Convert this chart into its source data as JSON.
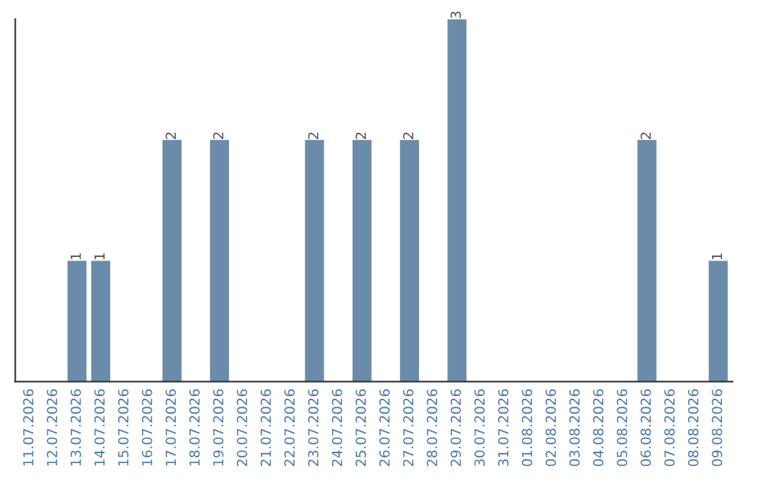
{
  "chart_data": {
    "type": "bar",
    "categories": [
      "11.07.2026",
      "12.07.2026",
      "13.07.2026",
      "14.07.2026",
      "15.07.2026",
      "16.07.2026",
      "17.07.2026",
      "18.07.2026",
      "19.07.2026",
      "20.07.2026",
      "21.07.2026",
      "22.07.2026",
      "23.07.2026",
      "24.07.2026",
      "25.07.2026",
      "26.07.2026",
      "27.07.2026",
      "28.07.2026",
      "29.07.2026",
      "30.07.2026",
      "31.07.2026",
      "01.08.2026",
      "02.08.2026",
      "03.08.2026",
      "04.08.2026",
      "05.08.2026",
      "06.08.2026",
      "07.08.2026",
      "08.08.2026",
      "09.08.2026"
    ],
    "values": [
      0,
      0,
      1,
      1,
      0,
      0,
      2,
      0,
      2,
      0,
      0,
      0,
      2,
      0,
      2,
      0,
      2,
      0,
      3,
      0,
      0,
      0,
      0,
      0,
      0,
      0,
      2,
      0,
      0,
      1
    ],
    "value_labels": [
      null,
      null,
      "1",
      "1",
      null,
      null,
      "2",
      null,
      "2",
      null,
      null,
      null,
      "2",
      null,
      "2",
      null,
      "2",
      null,
      "3",
      null,
      null,
      null,
      null,
      null,
      null,
      null,
      "2",
      null,
      null,
      "1"
    ],
    "color": "#6b8bab",
    "tick_labels": "x",
    "grid": false
  }
}
